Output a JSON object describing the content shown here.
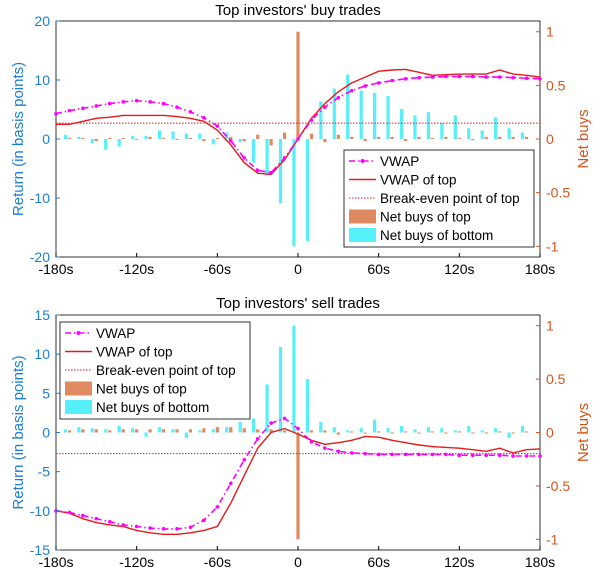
{
  "colors": {
    "left_axis": "#1a7fd4",
    "right_axis": "#d95319",
    "vwap": "#ff00ff",
    "vwap_top": "#e41a1c",
    "breakeven": "#e41a1c",
    "net_top": "#e08a60",
    "net_bottom": "#55f0f8",
    "frame": "#000000"
  },
  "chart_data": [
    {
      "type": "line",
      "title": "Top investors' buy trades",
      "ylabel": "Return (in basis points)",
      "y2label": "Net buys",
      "xlim": [
        -180,
        180
      ],
      "ylim": [
        -20,
        20
      ],
      "y2lim": [
        -1.1,
        1.1
      ],
      "x_ticks": [
        -180,
        -120,
        -60,
        0,
        60,
        120,
        180
      ],
      "x_tick_labels": [
        "-180s",
        "-120s",
        "-60s",
        "0",
        "60s",
        "120s",
        "180s"
      ],
      "y_ticks": [
        -20,
        -10,
        0,
        10,
        20
      ],
      "y_tick_labels": [
        "-20",
        "-10",
        "0",
        "10",
        "20"
      ],
      "y2_ticks": [
        -1,
        -0.5,
        0,
        0.5,
        1
      ],
      "y2_tick_labels": [
        "-1",
        "-0.5",
        "0",
        "0.5",
        "1"
      ],
      "legend_position": "bottom-right",
      "legend": [
        "VWAP",
        "VWAP of top",
        "Break-even point of top",
        "Net buys of top",
        "Net buys of bottom"
      ],
      "series": [
        {
          "name": "VWAP",
          "kind": "line",
          "x": [
            -180,
            -170,
            -160,
            -150,
            -140,
            -130,
            -120,
            -110,
            -100,
            -90,
            -80,
            -70,
            -60,
            -50,
            -40,
            -30,
            -20,
            -10,
            0,
            10,
            20,
            30,
            40,
            50,
            60,
            70,
            80,
            90,
            100,
            110,
            120,
            130,
            140,
            150,
            160,
            170,
            180
          ],
          "values": [
            4.3,
            4.8,
            5.2,
            5.6,
            6.0,
            6.3,
            6.5,
            6.3,
            6.0,
            5.4,
            4.6,
            3.6,
            2.2,
            -0.3,
            -3.2,
            -5.3,
            -5.7,
            -3.2,
            0.0,
            3.2,
            5.4,
            7.0,
            8.2,
            9.0,
            9.5,
            9.9,
            10.2,
            10.4,
            10.5,
            10.6,
            10.6,
            10.6,
            10.5,
            10.5,
            10.4,
            10.3,
            10.2
          ]
        },
        {
          "name": "VWAP of top",
          "kind": "line",
          "x": [
            -180,
            -170,
            -160,
            -150,
            -140,
            -130,
            -120,
            -110,
            -100,
            -90,
            -80,
            -70,
            -60,
            -50,
            -40,
            -30,
            -20,
            -10,
            0,
            10,
            20,
            30,
            40,
            50,
            60,
            70,
            80,
            90,
            100,
            110,
            120,
            130,
            140,
            150,
            160,
            170,
            180
          ],
          "values": [
            2.5,
            2.5,
            3.0,
            3.5,
            3.7,
            4.0,
            4.0,
            4.0,
            4.0,
            3.8,
            3.5,
            3.0,
            1.5,
            -1.0,
            -4.0,
            -5.8,
            -6.0,
            -3.5,
            0.0,
            3.5,
            6.0,
            8.0,
            9.5,
            10.5,
            11.5,
            11.7,
            11.8,
            11.3,
            10.8,
            10.9,
            11.0,
            11.0,
            11.0,
            11.7,
            11.0,
            10.8,
            10.5
          ]
        },
        {
          "name": "Break-even point of top",
          "kind": "hline",
          "value": 2.7
        },
        {
          "name": "Net buys of top",
          "kind": "bar",
          "axis": "right",
          "x": [
            -170,
            -160,
            -150,
            -140,
            -130,
            -120,
            -110,
            -100,
            -90,
            -80,
            -70,
            -60,
            -50,
            -40,
            -30,
            -20,
            -10,
            0,
            10,
            20,
            30,
            40,
            50,
            60,
            70,
            80,
            90,
            100,
            110,
            120,
            130,
            140,
            150,
            160,
            170
          ],
          "values": [
            0.01,
            0.01,
            -0.02,
            0.01,
            0.01,
            -0.01,
            0.02,
            0.01,
            -0.01,
            0.01,
            -0.02,
            0.01,
            0.02,
            -0.02,
            0.04,
            -0.06,
            0.06,
            1.0,
            0.05,
            -0.03,
            0.04,
            0.02,
            -0.02,
            0.02,
            0.02,
            -0.02,
            0.02,
            0.01,
            0.02,
            0.01,
            -0.01,
            0.02,
            0.02,
            0.02,
            0.02
          ]
        },
        {
          "name": "Net buys of bottom",
          "kind": "bar",
          "axis": "right",
          "x": [
            -173,
            -163,
            -153,
            -143,
            -133,
            -123,
            -113,
            -103,
            -93,
            -83,
            -73,
            -63,
            -53,
            -43,
            -33,
            -23,
            -13,
            -3,
            7,
            17,
            27,
            37,
            47,
            57,
            67,
            77,
            87,
            97,
            107,
            117,
            127,
            137,
            147,
            157,
            167
          ],
          "values": [
            0.04,
            0.02,
            -0.04,
            -0.1,
            -0.07,
            0.03,
            0.03,
            0.08,
            0.07,
            0.05,
            0.05,
            -0.05,
            0.06,
            -0.03,
            -0.22,
            -0.34,
            -0.6,
            -1.0,
            -0.95,
            0.35,
            0.47,
            0.6,
            0.45,
            0.43,
            0.4,
            0.28,
            0.22,
            0.25,
            0.15,
            0.22,
            0.1,
            0.08,
            0.2,
            0.1,
            0.06
          ]
        }
      ]
    },
    {
      "type": "line",
      "title": "Top investors' sell trades",
      "ylabel": "Return (in basis points)",
      "y2label": "Net buys",
      "xlim": [
        -180,
        180
      ],
      "ylim": [
        -15,
        15
      ],
      "y2lim": [
        -1.1,
        1.1
      ],
      "x_ticks": [
        -180,
        -120,
        -60,
        0,
        60,
        120,
        180
      ],
      "x_tick_labels": [
        "-180s",
        "-120s",
        "-60s",
        "0",
        "60s",
        "120s",
        "180s"
      ],
      "y_ticks": [
        -15,
        -10,
        -5,
        0,
        5,
        10,
        15
      ],
      "y_tick_labels": [
        "-15",
        "-10",
        "-5",
        "0",
        "5",
        "10",
        "15"
      ],
      "y2_ticks": [
        -1,
        -0.5,
        0,
        0.5,
        1
      ],
      "y2_tick_labels": [
        "-1",
        "-0.5",
        "0",
        "0.5",
        "1"
      ],
      "legend_position": "top-left",
      "legend": [
        "VWAP",
        "VWAP of top",
        "Break-even point of top",
        "Net buys of top",
        "Net buys of bottom"
      ],
      "series": [
        {
          "name": "VWAP",
          "kind": "line",
          "x": [
            -180,
            -170,
            -160,
            -150,
            -140,
            -130,
            -120,
            -110,
            -100,
            -90,
            -80,
            -70,
            -60,
            -50,
            -40,
            -30,
            -20,
            -10,
            0,
            10,
            20,
            30,
            40,
            50,
            60,
            70,
            80,
            90,
            100,
            110,
            120,
            130,
            140,
            150,
            160,
            170,
            180
          ],
          "values": [
            -10.0,
            -10.2,
            -10.6,
            -11.0,
            -11.4,
            -11.8,
            -12.0,
            -12.2,
            -12.3,
            -12.3,
            -12.1,
            -11.2,
            -9.5,
            -6.5,
            -3.5,
            -0.8,
            1.2,
            1.8,
            0.5,
            -1.2,
            -2.0,
            -2.4,
            -2.6,
            -2.7,
            -2.8,
            -2.8,
            -2.8,
            -2.8,
            -2.8,
            -2.8,
            -2.9,
            -2.9,
            -2.9,
            -2.9,
            -3.0,
            -3.0,
            -3.0
          ]
        },
        {
          "name": "VWAP of top",
          "kind": "line",
          "x": [
            -180,
            -170,
            -160,
            -150,
            -140,
            -130,
            -120,
            -110,
            -100,
            -90,
            -80,
            -70,
            -60,
            -50,
            -40,
            -30,
            -20,
            -10,
            0,
            10,
            20,
            30,
            40,
            50,
            60,
            70,
            80,
            90,
            100,
            110,
            120,
            130,
            140,
            150,
            160,
            170,
            180
          ],
          "values": [
            -10.0,
            -10.3,
            -11.0,
            -11.5,
            -11.8,
            -12.0,
            -12.5,
            -12.8,
            -13.0,
            -13.0,
            -12.8,
            -12.5,
            -12.0,
            -9.0,
            -5.5,
            -2.0,
            0.0,
            0.5,
            -0.2,
            -1.0,
            -1.5,
            -1.3,
            -1.0,
            -0.5,
            -0.6,
            -1.0,
            -1.3,
            -1.6,
            -1.8,
            -1.9,
            -2.0,
            -2.2,
            -2.4,
            -2.0,
            -2.6,
            -2.2,
            -2.1
          ]
        },
        {
          "name": "Break-even point of top",
          "kind": "hline",
          "value": -2.7
        },
        {
          "name": "Net buys of top",
          "kind": "bar",
          "axis": "right",
          "x": [
            -170,
            -160,
            -150,
            -140,
            -130,
            -120,
            -110,
            -100,
            -90,
            -80,
            -70,
            -60,
            -50,
            -40,
            -30,
            -20,
            -10,
            0,
            10,
            20,
            30,
            40,
            50,
            60,
            70,
            80,
            90,
            100,
            110,
            120,
            130,
            140,
            150,
            160,
            170
          ],
          "values": [
            0.02,
            0.03,
            0.03,
            0.02,
            0.03,
            0.03,
            0.03,
            0.03,
            0.03,
            0.03,
            0.04,
            0.05,
            0.05,
            0.04,
            0.03,
            0.03,
            0.02,
            -1.0,
            0.02,
            0.02,
            -0.02,
            0.01,
            -0.01,
            0.01,
            -0.01,
            0.01,
            -0.01,
            0.01,
            -0.01,
            0.01,
            -0.01,
            -0.01,
            0.01,
            -0.01,
            0.01
          ]
        },
        {
          "name": "Net buys of bottom",
          "kind": "bar",
          "axis": "right",
          "x": [
            -173,
            -163,
            -153,
            -143,
            -133,
            -123,
            -113,
            -103,
            -93,
            -83,
            -73,
            -63,
            -53,
            -43,
            -33,
            -23,
            -13,
            -3,
            7,
            17,
            27,
            37,
            47,
            57,
            67,
            77,
            87,
            97,
            107,
            117,
            127,
            137,
            147,
            157,
            167
          ],
          "values": [
            0.03,
            0.05,
            0.04,
            0.03,
            0.06,
            0.04,
            -0.04,
            0.05,
            0.03,
            -0.05,
            0.02,
            0.03,
            0.05,
            0.1,
            0.13,
            0.45,
            0.8,
            1.0,
            0.5,
            0.1,
            0.05,
            0.02,
            0.04,
            0.12,
            0.04,
            0.06,
            0.03,
            0.05,
            0.04,
            0.02,
            0.06,
            0.02,
            0.04,
            -0.05,
            0.06
          ]
        }
      ]
    }
  ]
}
